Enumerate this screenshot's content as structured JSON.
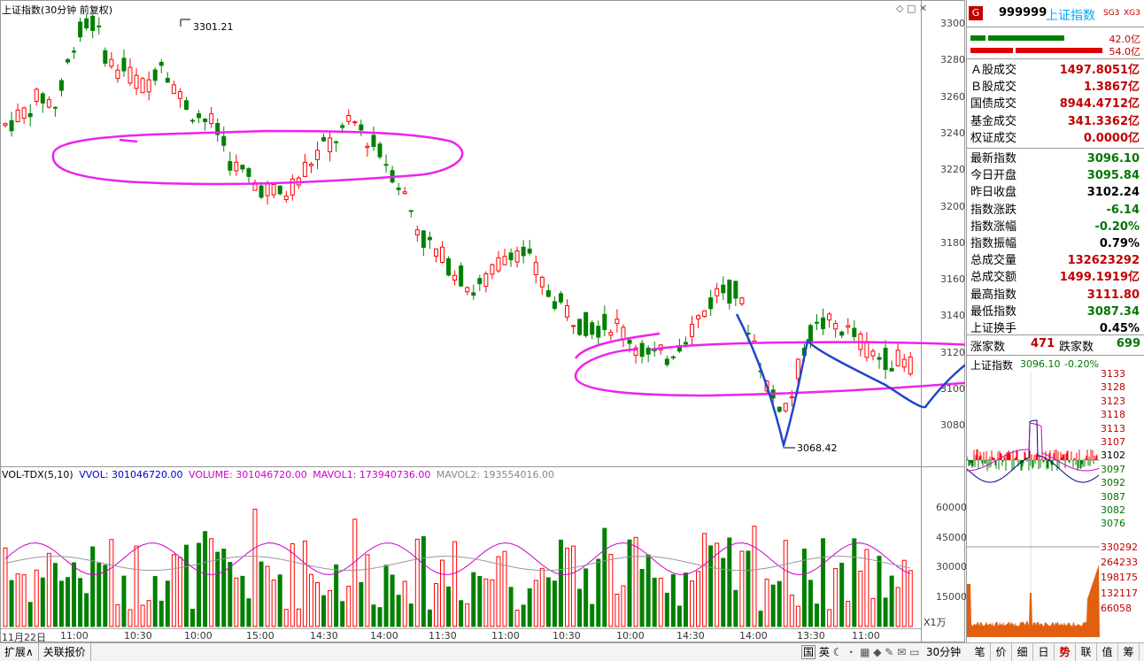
{
  "header": {
    "title": "上证指数(30分钟 前复权)",
    "vol_label": "VOL-TDX(5,10)",
    "vvol": "VVOL: 301046720.00",
    "volume": "VOLUME: 301046720.00",
    "mavol1": "MAVOL1: 173940736.00",
    "mavol2": "MAVOL2: 193554016.00",
    "high_marker": "3301.21",
    "low_marker": "3068.42",
    "x1wan": "X1万"
  },
  "price_axis": [
    "3300",
    "3280",
    "3260",
    "3240",
    "3220",
    "3200",
    "3180",
    "3160",
    "3140",
    "3120",
    "3100",
    "3080"
  ],
  "volume_axis": [
    "60000",
    "45000",
    "30000",
    "15000"
  ],
  "x_ticks": [
    "11月22日",
    "11:00",
    "10:30",
    "10:00",
    "15:00",
    "14:30",
    "14:00",
    "11:30",
    "11:00",
    "10:30",
    "10:00",
    "14:30",
    "14:00",
    "13:30",
    "11:00"
  ],
  "right_panel": {
    "badge": "G",
    "code": "999999",
    "name": "上证指数",
    "sg3": "SG3",
    "xg3": "XG3",
    "bar1_val": "42.0亿",
    "bar2_val": "54.0亿",
    "rows": [
      {
        "label": "Ａ股成交",
        "value": "1497.8051亿",
        "color": "red"
      },
      {
        "label": "Ｂ股成交",
        "value": "1.3867亿",
        "color": "red"
      },
      {
        "label": "国债成交",
        "value": "8944.4712亿",
        "color": "red"
      },
      {
        "label": "基金成交",
        "value": "341.3362亿",
        "color": "red"
      },
      {
        "label": "权证成交",
        "value": "0.0000亿",
        "color": "red"
      },
      {
        "label": "最新指数",
        "value": "3096.10",
        "color": "green"
      },
      {
        "label": "今日开盘",
        "value": "3095.84",
        "color": "green"
      },
      {
        "label": "昨日收盘",
        "value": "3102.24",
        "color": "black"
      },
      {
        "label": "指数涨跌",
        "value": "-6.14",
        "color": "green"
      },
      {
        "label": "指数涨幅",
        "value": "-0.20%",
        "color": "green"
      },
      {
        "label": "指数振幅",
        "value": "0.79%",
        "color": "black"
      },
      {
        "label": "总成交量",
        "value": "132623292",
        "color": "red"
      },
      {
        "label": "总成交额",
        "value": "1499.1919亿",
        "color": "red"
      },
      {
        "label": "最高指数",
        "value": "3111.80",
        "color": "red"
      },
      {
        "label": "最低指数",
        "value": "3087.34",
        "color": "green"
      },
      {
        "label": "上证换手",
        "value": "0.45%",
        "color": "black"
      }
    ],
    "up_label": "涨家数",
    "up_count": "471",
    "down_label": "跌家数",
    "down_count": "699",
    "mini_title": "上证指数",
    "mini_price": "3096.10",
    "mini_pct": "-0.20%",
    "mini_price_axis": [
      "3133",
      "3128",
      "3123",
      "3118",
      "3113",
      "3107",
      "3102",
      "3097",
      "3092",
      "3087",
      "3082",
      "3076"
    ],
    "mini_vol_axis": [
      "330292",
      "264233",
      "198175",
      "132117",
      "66058"
    ],
    "tabs": [
      "笔",
      "价",
      "细",
      "日",
      "势",
      "联",
      "值",
      "筹"
    ]
  },
  "bottom": {
    "expand": "扩展∧",
    "quote": "关联报价",
    "period": "30分钟",
    "status_icons": [
      "国",
      "英",
      "☾"
    ]
  },
  "colors": {
    "up": "#ff0000",
    "down": "#008000",
    "ma1": "#cc00cc",
    "ma2": "#888888",
    "annot_pink": "#ee22ee",
    "annot_blue": "#2244cc"
  }
}
